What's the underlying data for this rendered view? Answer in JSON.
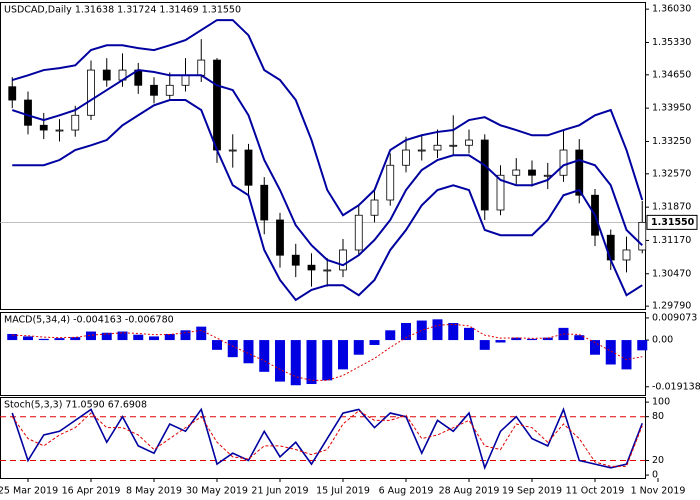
{
  "chart_data": [
    {
      "type": "candlestick",
      "title": "USDCAD,Daily  1.31638 1.31724 1.31469 1.31550",
      "categories": [
        null,
        "25 Mar 2019",
        null,
        null,
        null,
        "16 Apr 2019",
        null,
        null,
        null,
        "8 May 2019",
        null,
        null,
        null,
        "30 May 2019",
        null,
        null,
        null,
        "21 Jun 2019",
        null,
        null,
        null,
        "15 Jul 2019",
        null,
        null,
        null,
        "6 Aug 2019",
        null,
        null,
        null,
        "28 Aug 2019",
        null,
        null,
        null,
        "19 Sep 2019",
        null,
        null,
        null,
        "11 Oct 2019",
        null,
        null,
        null,
        "1 Nov 2019"
      ],
      "open": [
        1.344,
        1.3412,
        1.3359,
        1.3349,
        1.3349,
        1.338,
        1.3475,
        1.3454,
        1.3475,
        1.3443,
        1.3422,
        1.3443,
        1.3464,
        1.3496,
        1.3307,
        1.3307,
        1.3233,
        1.316,
        1.3086,
        1.3065,
        1.3055,
        1.3055,
        1.3097,
        1.317,
        1.3202,
        1.3275,
        1.3307,
        1.3307,
        1.3317,
        1.3317,
        1.3328,
        1.3181,
        1.3254,
        1.3265,
        1.3254,
        1.3254,
        1.3307,
        1.3212,
        1.3128,
        1.3076,
        1.3097,
        null
      ],
      "high": [
        1.346,
        1.343,
        1.3385,
        1.3372,
        1.34,
        1.3495,
        1.35,
        1.351,
        1.349,
        1.346,
        1.347,
        1.35,
        1.354,
        1.35,
        1.334,
        1.332,
        1.325,
        1.3175,
        1.311,
        1.309,
        1.308,
        1.312,
        1.319,
        1.3225,
        1.33,
        1.3335,
        1.334,
        1.335,
        1.338,
        1.335,
        1.334,
        1.3275,
        1.329,
        1.3285,
        1.328,
        1.335,
        1.333,
        1.3225,
        1.314,
        1.3125,
        1.32,
        null
      ],
      "low": [
        1.3395,
        1.334,
        1.333,
        1.3325,
        1.3335,
        1.337,
        1.344,
        1.344,
        1.3425,
        1.3405,
        1.341,
        1.343,
        1.345,
        1.328,
        1.327,
        1.321,
        1.313,
        1.306,
        1.304,
        1.302,
        1.302,
        1.304,
        1.3085,
        1.3155,
        1.319,
        1.326,
        1.3285,
        1.329,
        1.3295,
        1.33,
        1.316,
        1.317,
        1.3235,
        1.323,
        1.3225,
        1.324,
        1.3195,
        1.3105,
        1.3055,
        1.305,
        1.309,
        null
      ],
      "close": [
        1.3412,
        1.3359,
        1.3349,
        1.3349,
        1.338,
        1.3475,
        1.3454,
        1.3475,
        1.3443,
        1.3422,
        1.3443,
        1.3464,
        1.3496,
        1.3307,
        1.3307,
        1.3233,
        1.316,
        1.3086,
        1.3065,
        1.3055,
        1.3055,
        1.3097,
        1.317,
        1.3202,
        1.3275,
        1.3307,
        1.3307,
        1.3317,
        1.3317,
        1.3328,
        1.3181,
        1.3254,
        1.3265,
        1.3254,
        1.3254,
        1.3307,
        1.3212,
        1.3128,
        1.3076,
        1.3097,
        1.3155,
        null
      ],
      "bands": {
        "color": "#0000a0",
        "upper": [
          1.3454,
          1.3464,
          1.3475,
          1.3479,
          1.3485,
          1.3517,
          1.3527,
          1.3527,
          1.3521,
          1.3517,
          1.3527,
          1.3538,
          1.3559,
          1.358,
          1.358,
          1.3548,
          1.3475,
          1.3454,
          1.3412,
          1.3328,
          1.3223,
          1.317,
          1.3191,
          1.3223,
          1.3307,
          1.3328,
          1.3338,
          1.3345,
          1.3349,
          1.337,
          1.3376,
          1.3359,
          1.3349,
          1.3338,
          1.3338,
          1.3349,
          1.3359,
          1.338,
          1.3391,
          1.3307,
          1.3202,
          null
        ],
        "middle": [
          1.3391,
          1.338,
          1.337,
          1.338,
          1.3391,
          1.3412,
          1.3433,
          1.3454,
          1.3475,
          1.3471,
          1.3464,
          1.3464,
          1.3464,
          1.3443,
          1.3433,
          1.338,
          1.3286,
          1.3223,
          1.3149,
          1.3107,
          1.3076,
          1.3065,
          1.3086,
          1.3118,
          1.316,
          1.3223,
          1.3265,
          1.3286,
          1.3296,
          1.3296,
          1.3275,
          1.3244,
          1.3233,
          1.3233,
          1.3244,
          1.3275,
          1.3286,
          1.3275,
          1.3233,
          1.3139,
          1.3107,
          null
        ],
        "lower": [
          1.3275,
          1.3275,
          1.3275,
          1.3286,
          1.3307,
          1.3317,
          1.3328,
          1.3359,
          1.338,
          1.3401,
          1.3412,
          1.3412,
          1.3391,
          1.3307,
          1.3233,
          1.3212,
          1.3097,
          1.3034,
          1.2992,
          1.3013,
          1.3023,
          1.3023,
          1.3002,
          1.3034,
          1.3097,
          1.3139,
          1.3191,
          1.3223,
          1.3233,
          1.3223,
          1.3139,
          1.3128,
          1.3128,
          1.3128,
          1.316,
          1.3212,
          1.3223,
          1.317,
          1.3076,
          1.3002,
          1.3023,
          null
        ]
      },
      "last_price": {
        "value": 1.3155,
        "label": "1.31550"
      },
      "ylim": [
        1.2973,
        1.3618
      ],
      "yticks": [
        {
          "value": 1.3603,
          "label": "1.36030"
        },
        {
          "value": 1.3533,
          "label": "1.35330"
        },
        {
          "value": 1.3465,
          "label": "1.34650"
        },
        {
          "value": 1.3395,
          "label": "1.33950"
        },
        {
          "value": 1.3325,
          "label": "1.33250"
        },
        {
          "value": 1.3257,
          "label": "1.32570"
        },
        {
          "value": 1.3187,
          "label": "1.31870"
        },
        {
          "value": 1.3117,
          "label": "1.31170"
        },
        {
          "value": 1.3047,
          "label": "1.30470"
        },
        {
          "value": 1.2979,
          "label": "1.29790"
        }
      ]
    },
    {
      "type": "macd",
      "title": "MACD(5,34,4) -0.004163 -0.006780",
      "histogram": {
        "color": "#0000e0",
        "values": [
          0.0025,
          0.0015,
          0.0005,
          0.0008,
          0.0012,
          0.0035,
          0.003,
          0.0035,
          0.0022,
          0.0015,
          0.0025,
          0.004,
          0.0055,
          -0.004,
          -0.007,
          -0.0095,
          -0.013,
          -0.017,
          -0.0185,
          -0.018,
          -0.0165,
          -0.012,
          -0.006,
          -0.002,
          0.004,
          0.007,
          0.008,
          0.0085,
          0.007,
          0.005,
          -0.004,
          -0.001,
          0.001,
          0.0005,
          0.001,
          0.005,
          0.002,
          -0.006,
          -0.01,
          -0.012,
          -0.0042,
          null
        ]
      },
      "signal": {
        "color": "#e00000",
        "values": [
          0.002,
          0.0018,
          0.0012,
          0.001,
          0.0011,
          0.002,
          0.0025,
          0.003,
          0.0027,
          0.0022,
          0.0023,
          0.003,
          0.004,
          0.0008,
          -0.0025,
          -0.0055,
          -0.0085,
          -0.012,
          -0.015,
          -0.0165,
          -0.0165,
          -0.0145,
          -0.011,
          -0.0075,
          -0.003,
          0.001,
          0.004,
          0.006,
          0.0065,
          0.0058,
          0.002,
          0.0008,
          0.0009,
          0.0007,
          0.0008,
          0.0025,
          0.0023,
          -0.001,
          -0.0045,
          -0.008,
          -0.0068,
          null
        ]
      },
      "ylim": [
        -0.0225,
        0.0115
      ],
      "yticks": [
        0.009073,
        {
          "value": 0,
          "label": "0.00"
        },
        -0.019138
      ]
    },
    {
      "type": "stochastic",
      "title": "Stoch(5,3,3) 71.0590 67.6908",
      "main": {
        "color": "#0000a0",
        "values": [
          85,
          20,
          55,
          60,
          75,
          90,
          45,
          80,
          40,
          30,
          70,
          60,
          90,
          15,
          30,
          20,
          60,
          25,
          45,
          15,
          50,
          85,
          90,
          65,
          85,
          80,
          30,
          75,
          60,
          85,
          10,
          60,
          80,
          50,
          40,
          90,
          20,
          15,
          10,
          15,
          71.059,
          null
        ]
      },
      "signal": {
        "color": "#e00000",
        "values": [
          80,
          50,
          40,
          55,
          65,
          85,
          65,
          65,
          55,
          35,
          50,
          65,
          80,
          45,
          25,
          22,
          40,
          40,
          35,
          28,
          35,
          70,
          88,
          75,
          75,
          82,
          50,
          55,
          65,
          75,
          40,
          35,
          70,
          65,
          45,
          70,
          50,
          18,
          12,
          12,
          67.6908,
          null
        ]
      },
      "levels": [
        80,
        20
      ],
      "level_color": "#e00000",
      "ylim": [
        -4,
        107
      ],
      "yticks": [
        0,
        20,
        80,
        100
      ]
    }
  ]
}
